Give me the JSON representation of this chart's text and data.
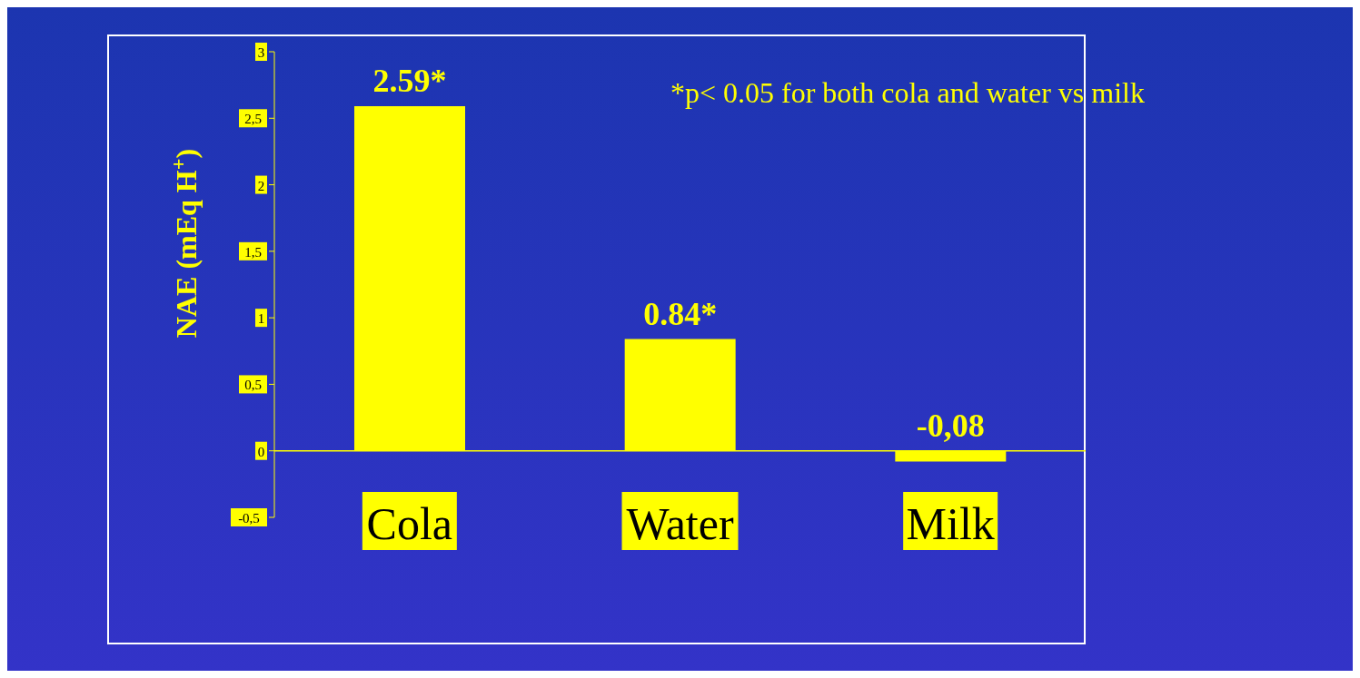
{
  "chart_data": {
    "type": "bar",
    "ylabel": "NAE (mEq H$^{+}$)",
    "categories": [
      "Cola",
      "Water",
      "Milk"
    ],
    "values": [
      2.59,
      0.84,
      -0.08
    ],
    "value_labels": [
      "2.59*",
      "0.84*",
      "-0,08"
    ],
    "color": "#ffff00",
    "ylim": [
      -0.5,
      3
    ],
    "yticks": [
      {
        "value": -0.5,
        "label": "-0,5"
      },
      0,
      {
        "value": 0.5,
        "label": "0,5"
      },
      1,
      {
        "value": 1.5,
        "label": "1,5"
      },
      2,
      {
        "value": 2.5,
        "label": "2,5"
      },
      3
    ],
    "annotations": [
      "*p< 0.05 for both cola and water vs milk"
    ],
    "grid": false,
    "legend": false
  }
}
